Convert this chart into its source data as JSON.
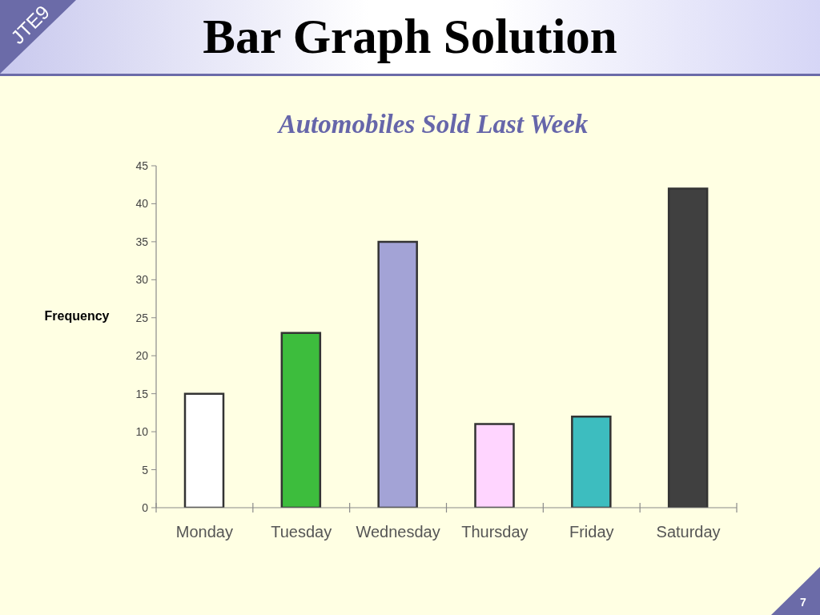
{
  "chart_data": {
    "type": "bar",
    "title": "Bar Graph Solution",
    "subtitle": "Automobiles Sold Last Week",
    "ylabel": "Frequency",
    "categories": [
      "Monday",
      "Tuesday",
      "Wednesday",
      "Thursday",
      "Friday",
      "Saturday"
    ],
    "values": [
      15,
      23,
      35,
      11,
      12,
      42
    ],
    "colors": [
      "#ffffff",
      "#3dbd3d",
      "#a3a3d6",
      "#ffd5ff",
      "#3dbdbf",
      "#404040"
    ],
    "ylim": [
      0,
      45
    ],
    "yticks": [
      0,
      5,
      10,
      15,
      20,
      25,
      30,
      35,
      40,
      45
    ],
    "annotations": [
      "JTE9",
      "7"
    ]
  }
}
